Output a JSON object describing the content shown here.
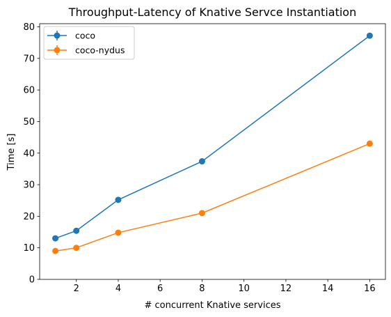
{
  "chart_data": {
    "type": "line",
    "title": "Throughput-Latency of Knative Servce Instantiation",
    "xlabel": "# concurrent Knative services",
    "ylabel": "Time [s]",
    "xlim": [
      0.25,
      16.75
    ],
    "ylim": [
      0,
      81
    ],
    "xticks": [
      2,
      4,
      6,
      8,
      10,
      12,
      14,
      16
    ],
    "yticks": [
      0,
      10,
      20,
      30,
      40,
      50,
      60,
      70,
      80
    ],
    "x": [
      1,
      2,
      4,
      8,
      16
    ],
    "series": [
      {
        "name": "coco",
        "color": "#1f77b4",
        "values": [
          13.0,
          15.4,
          25.2,
          37.4,
          77.2
        ]
      },
      {
        "name": "coco-nydus",
        "color": "#ff7f0e",
        "values": [
          9.0,
          10.0,
          14.8,
          21.0,
          43.0
        ]
      }
    ],
    "legend": "top-left",
    "grid": false,
    "error_bars": true
  }
}
